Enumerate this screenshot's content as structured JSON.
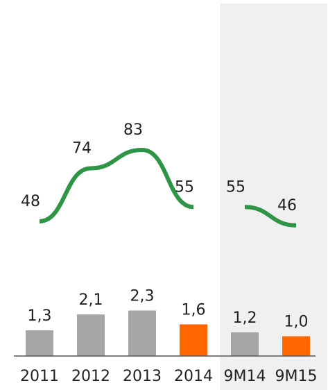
{
  "chart_data": {
    "type": "bar",
    "categories": [
      "2011",
      "2012",
      "2013",
      "2014",
      "9M14",
      "9M15"
    ],
    "bar_labels": [
      "1,3",
      "2,1",
      "2,3",
      "1,6",
      "1,2",
      "1,0"
    ],
    "values": [
      1.3,
      2.1,
      2.3,
      1.6,
      1.2,
      1.0
    ],
    "highlighted": [
      false,
      false,
      false,
      true,
      false,
      true
    ],
    "line_series": [
      {
        "x": [
          "2011",
          "2012",
          "2013",
          "2014"
        ],
        "values": [
          48,
          74,
          83,
          55
        ],
        "labels": [
          "48",
          "74",
          "83",
          "55"
        ]
      },
      {
        "x": [
          "9M14",
          "9M15"
        ],
        "values": [
          55,
          46
        ],
        "labels": [
          "55",
          "46"
        ]
      }
    ],
    "shaded_categories": [
      "9M14",
      "9M15"
    ],
    "title": "",
    "xlabel": "",
    "ylabel": "",
    "grid": false,
    "colors": {
      "bar": "#a6a6a6",
      "bar_highlight": "#ff6600",
      "line": "#2e9546",
      "shade": "#f0f0f0",
      "axis": "#555555"
    }
  }
}
